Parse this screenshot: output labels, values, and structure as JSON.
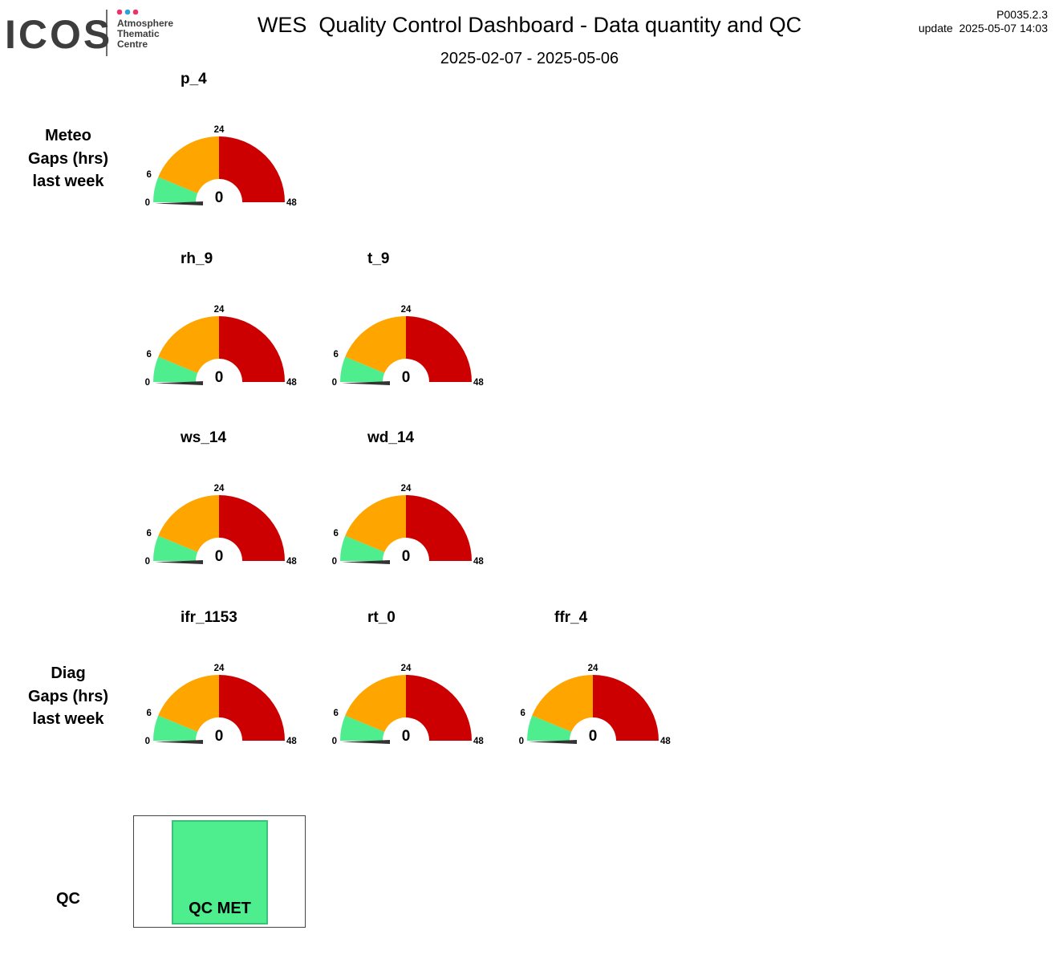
{
  "header": {
    "logo_text": "ICOS",
    "logo_lines": [
      "Atmosphere",
      "Thematic",
      "Centre"
    ],
    "logo_dot_colors": [
      "#e8336d",
      "#2e9fe0",
      "#e8336d"
    ],
    "title": "WES  Quality Control Dashboard - Data quantity and QC",
    "period": "2025-02-07 - 2025-05-06",
    "version": "P0035.2.3",
    "update": "update  2025-05-07 14:03"
  },
  "row_labels": {
    "meteo": [
      "Meteo",
      "Gaps (hrs)",
      "last week"
    ],
    "diag": [
      "Diag",
      "Gaps (hrs)",
      "last week"
    ],
    "qc": "QC"
  },
  "chart_data": {
    "type": "gauge",
    "range": [
      0,
      48
    ],
    "bands": [
      {
        "from": 0,
        "to": 6,
        "color": "#4eee8f"
      },
      {
        "from": 6,
        "to": 24,
        "color": "#ffa500"
      },
      {
        "from": 24,
        "to": 48,
        "color": "#cc0000"
      }
    ],
    "tick_labels": [
      "0",
      "6",
      "24",
      "48"
    ],
    "gauges": [
      {
        "name": "p_4",
        "value": 0,
        "group": "meteo",
        "row": 0,
        "col": 0
      },
      {
        "name": "rh_9",
        "value": 0,
        "group": "meteo",
        "row": 1,
        "col": 0
      },
      {
        "name": "t_9",
        "value": 0,
        "group": "meteo",
        "row": 1,
        "col": 1
      },
      {
        "name": "ws_14",
        "value": 0,
        "group": "meteo",
        "row": 2,
        "col": 0
      },
      {
        "name": "wd_14",
        "value": 0,
        "group": "meteo",
        "row": 2,
        "col": 1
      },
      {
        "name": "ifr_1153",
        "value": 0,
        "group": "diag",
        "row": 3,
        "col": 0
      },
      {
        "name": "rt_0",
        "value": 0,
        "group": "diag",
        "row": 3,
        "col": 1
      },
      {
        "name": "ffr_4",
        "value": 0,
        "group": "diag",
        "row": 3,
        "col": 2
      }
    ]
  },
  "qc": {
    "status": "QC MET",
    "color": "#4eee8f"
  }
}
